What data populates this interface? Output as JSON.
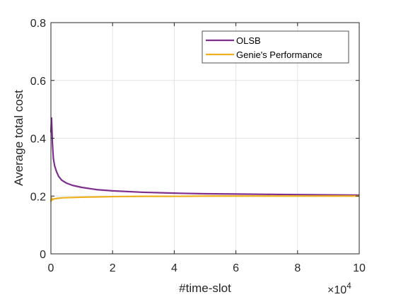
{
  "chart_data": {
    "type": "line",
    "title": "",
    "xlabel": "#time-slot",
    "ylabel": "Average total cost",
    "x_exponent_label": "×10",
    "x_exponent_power": "4",
    "xlim": [
      0,
      10
    ],
    "ylim": [
      0,
      0.8
    ],
    "x_ticks": [
      0,
      2,
      4,
      6,
      8,
      10
    ],
    "x_tick_labels": [
      "0",
      "2",
      "4",
      "6",
      "8",
      "10"
    ],
    "y_ticks": [
      0,
      0.2,
      0.4,
      0.6,
      0.8
    ],
    "y_tick_labels": [
      "0",
      "0.2",
      "0.4",
      "0.6",
      "0.8"
    ],
    "grid": true,
    "legend_position": "top-right",
    "series": [
      {
        "name": "OLSB",
        "color": "#7E2F8E",
        "x": [
          0.0,
          0.02,
          0.05,
          0.08,
          0.12,
          0.18,
          0.25,
          0.35,
          0.5,
          0.7,
          1.0,
          1.5,
          2.0,
          3.0,
          4.0,
          5.0,
          6.0,
          7.0,
          8.0,
          9.0,
          10.0
        ],
        "y": [
          0.42,
          0.47,
          0.38,
          0.33,
          0.305,
          0.285,
          0.268,
          0.255,
          0.245,
          0.237,
          0.23,
          0.222,
          0.218,
          0.213,
          0.21,
          0.208,
          0.207,
          0.206,
          0.205,
          0.204,
          0.203
        ]
      },
      {
        "name": "Genie's Performance",
        "color": "#EDB120",
        "x": [
          0.0,
          0.02,
          0.05,
          0.1,
          0.2,
          0.4,
          0.7,
          1.0,
          1.5,
          2.0,
          3.0,
          4.0,
          5.0,
          6.0,
          7.0,
          8.0,
          9.0,
          10.0
        ],
        "y": [
          0.18,
          0.195,
          0.187,
          0.19,
          0.192,
          0.194,
          0.195,
          0.196,
          0.197,
          0.198,
          0.199,
          0.199,
          0.2,
          0.2,
          0.2,
          0.2,
          0.2,
          0.2
        ]
      }
    ]
  }
}
